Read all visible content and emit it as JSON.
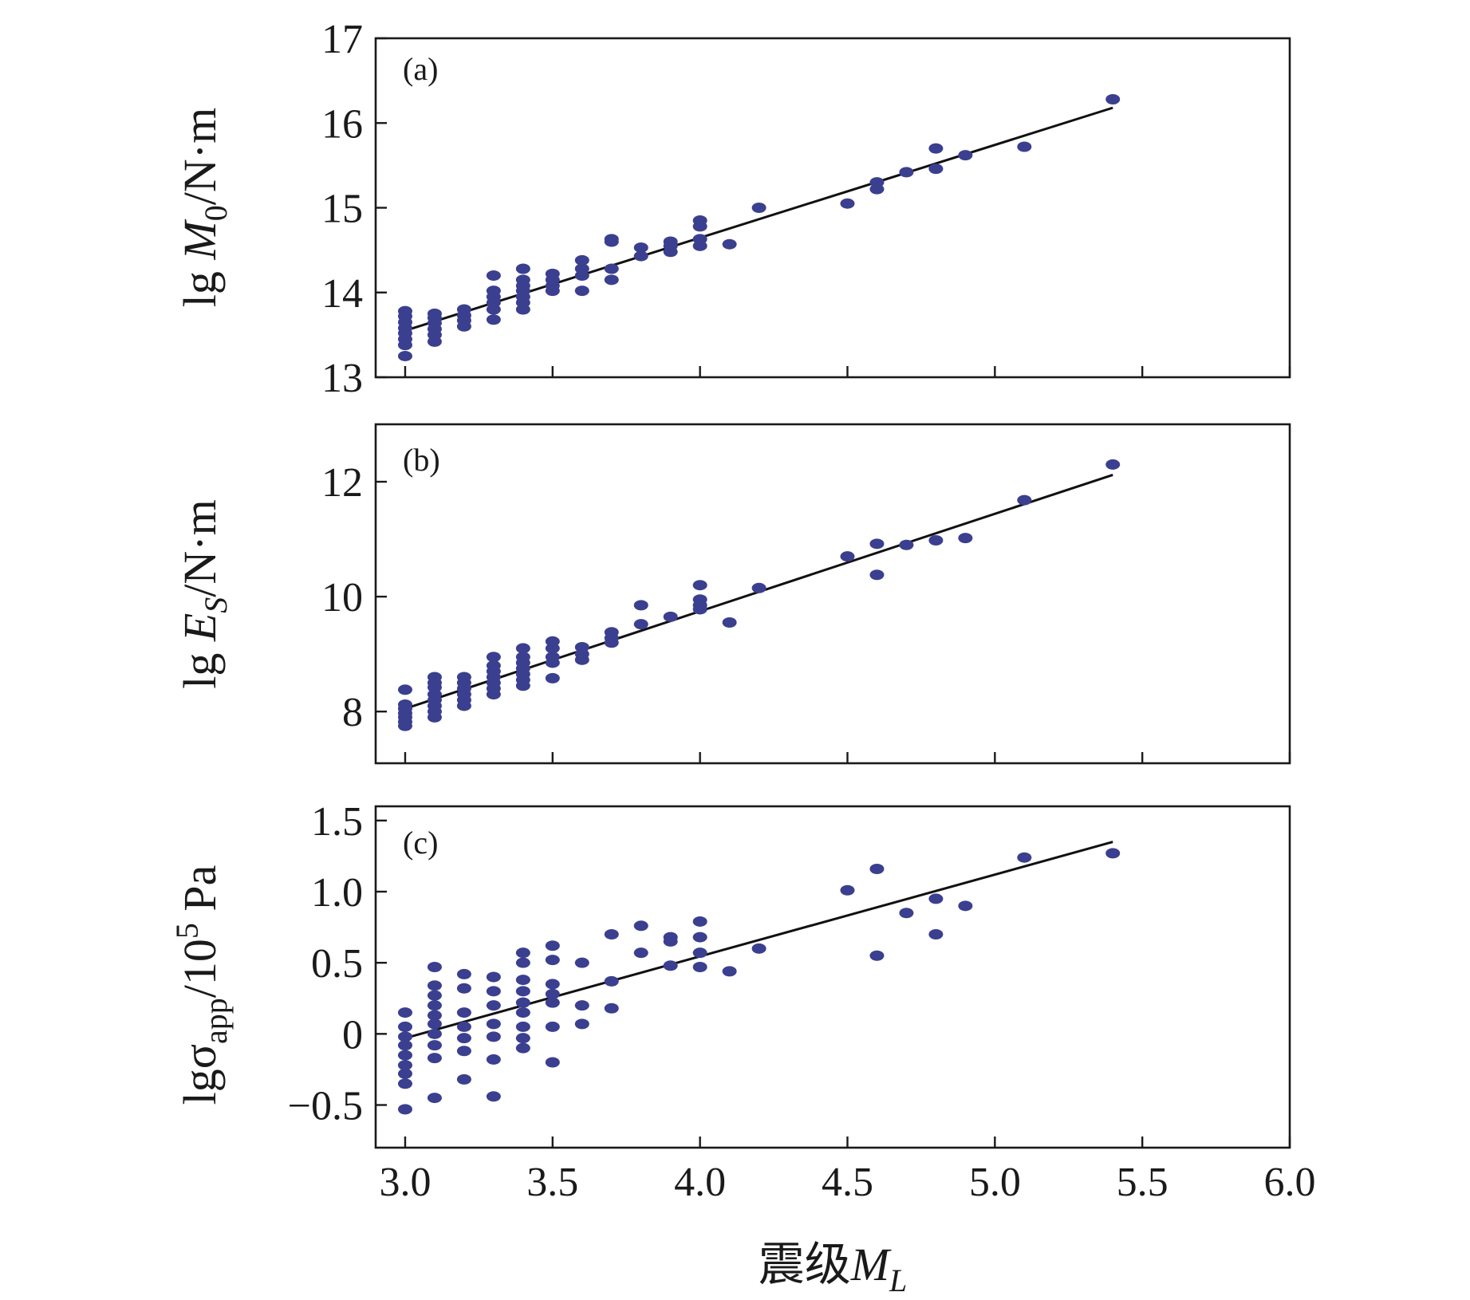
{
  "chart_data": [
    {
      "type": "scatter",
      "panel_label": "(a)",
      "ylabel": {
        "prefix": "lg ",
        "symbol": "M",
        "subscript": "0",
        "suffix": "/N·m"
      },
      "xlim": [
        2.9,
        6.0
      ],
      "ylim": [
        13,
        17
      ],
      "yticks": [
        13,
        14,
        15,
        16,
        17
      ],
      "ytick_labels": [
        "13",
        "14",
        "15",
        "16",
        "17"
      ],
      "fit_line": {
        "x": [
          3.0,
          5.4
        ],
        "y": [
          13.55,
          16.18
        ]
      },
      "points": [
        [
          3.0,
          13.25
        ],
        [
          3.0,
          13.38
        ],
        [
          3.0,
          13.45
        ],
        [
          3.0,
          13.52
        ],
        [
          3.0,
          13.58
        ],
        [
          3.0,
          13.65
        ],
        [
          3.0,
          13.72
        ],
        [
          3.0,
          13.78
        ],
        [
          3.1,
          13.42
        ],
        [
          3.1,
          13.5
        ],
        [
          3.1,
          13.57
        ],
        [
          3.1,
          13.64
        ],
        [
          3.1,
          13.7
        ],
        [
          3.1,
          13.75
        ],
        [
          3.2,
          13.6
        ],
        [
          3.2,
          13.67
        ],
        [
          3.2,
          13.73
        ],
        [
          3.2,
          13.8
        ],
        [
          3.3,
          13.68
        ],
        [
          3.3,
          13.8
        ],
        [
          3.3,
          13.88
        ],
        [
          3.3,
          13.95
        ],
        [
          3.3,
          14.02
        ],
        [
          3.3,
          14.2
        ],
        [
          3.4,
          13.8
        ],
        [
          3.4,
          13.88
        ],
        [
          3.4,
          13.95
        ],
        [
          3.4,
          14.02
        ],
        [
          3.4,
          14.08
        ],
        [
          3.4,
          14.15
        ],
        [
          3.4,
          14.28
        ],
        [
          3.5,
          14.02
        ],
        [
          3.5,
          14.08
        ],
        [
          3.5,
          14.15
        ],
        [
          3.5,
          14.22
        ],
        [
          3.6,
          14.02
        ],
        [
          3.6,
          14.2
        ],
        [
          3.6,
          14.28
        ],
        [
          3.6,
          14.38
        ],
        [
          3.7,
          14.15
        ],
        [
          3.7,
          14.28
        ],
        [
          3.7,
          14.6
        ],
        [
          3.7,
          14.63
        ],
        [
          3.8,
          14.43
        ],
        [
          3.8,
          14.53
        ],
        [
          3.9,
          14.48
        ],
        [
          3.9,
          14.55
        ],
        [
          3.9,
          14.6
        ],
        [
          4.0,
          14.55
        ],
        [
          4.0,
          14.63
        ],
        [
          4.0,
          14.78
        ],
        [
          4.0,
          14.85
        ],
        [
          4.1,
          14.57
        ],
        [
          4.2,
          15.0
        ],
        [
          4.5,
          15.05
        ],
        [
          4.6,
          15.22
        ],
        [
          4.6,
          15.3
        ],
        [
          4.7,
          15.42
        ],
        [
          4.8,
          15.46
        ],
        [
          4.8,
          15.7
        ],
        [
          4.9,
          15.62
        ],
        [
          5.1,
          15.72
        ],
        [
          5.4,
          16.28
        ]
      ]
    },
    {
      "type": "scatter",
      "panel_label": "(b)",
      "ylabel": {
        "prefix": "lg ",
        "symbol": "E",
        "subscript": "S",
        "suffix": "/N·m"
      },
      "xlim": [
        2.9,
        6.0
      ],
      "ylim": [
        7.1,
        13.0
      ],
      "yticks": [
        8,
        10,
        12
      ],
      "ytick_labels": [
        "8",
        "10",
        "12"
      ],
      "fit_line": {
        "x": [
          3.0,
          5.4
        ],
        "y": [
          8.05,
          12.12
        ]
      },
      "points": [
        [
          3.0,
          7.75
        ],
        [
          3.0,
          7.82
        ],
        [
          3.0,
          7.9
        ],
        [
          3.0,
          7.97
        ],
        [
          3.0,
          8.05
        ],
        [
          3.0,
          8.12
        ],
        [
          3.0,
          8.38
        ],
        [
          3.1,
          7.9
        ],
        [
          3.1,
          8.0
        ],
        [
          3.1,
          8.1
        ],
        [
          3.1,
          8.2
        ],
        [
          3.1,
          8.3
        ],
        [
          3.1,
          8.42
        ],
        [
          3.1,
          8.5
        ],
        [
          3.1,
          8.6
        ],
        [
          3.2,
          8.1
        ],
        [
          3.2,
          8.2
        ],
        [
          3.2,
          8.3
        ],
        [
          3.2,
          8.4
        ],
        [
          3.2,
          8.5
        ],
        [
          3.2,
          8.6
        ],
        [
          3.3,
          8.3
        ],
        [
          3.3,
          8.4
        ],
        [
          3.3,
          8.5
        ],
        [
          3.3,
          8.6
        ],
        [
          3.3,
          8.7
        ],
        [
          3.3,
          8.8
        ],
        [
          3.3,
          8.95
        ],
        [
          3.4,
          8.45
        ],
        [
          3.4,
          8.55
        ],
        [
          3.4,
          8.65
        ],
        [
          3.4,
          8.75
        ],
        [
          3.4,
          8.85
        ],
        [
          3.4,
          8.95
        ],
        [
          3.4,
          9.1
        ],
        [
          3.5,
          8.58
        ],
        [
          3.5,
          8.85
        ],
        [
          3.5,
          8.95
        ],
        [
          3.5,
          9.1
        ],
        [
          3.5,
          9.22
        ],
        [
          3.6,
          8.9
        ],
        [
          3.6,
          9.0
        ],
        [
          3.6,
          9.12
        ],
        [
          3.7,
          9.2
        ],
        [
          3.7,
          9.28
        ],
        [
          3.7,
          9.38
        ],
        [
          3.8,
          9.52
        ],
        [
          3.8,
          9.85
        ],
        [
          3.9,
          9.65
        ],
        [
          4.0,
          9.78
        ],
        [
          4.0,
          9.85
        ],
        [
          4.0,
          9.95
        ],
        [
          4.0,
          10.2
        ],
        [
          4.1,
          9.55
        ],
        [
          4.2,
          10.15
        ],
        [
          4.5,
          10.7
        ],
        [
          4.6,
          10.38
        ],
        [
          4.6,
          10.92
        ],
        [
          4.7,
          10.9
        ],
        [
          4.8,
          10.98
        ],
        [
          4.9,
          11.02
        ],
        [
          5.1,
          11.68
        ],
        [
          5.4,
          12.3
        ]
      ]
    },
    {
      "type": "scatter",
      "panel_label": "(c)",
      "ylabel": {
        "prefix": "lgσ",
        "subscript": "app",
        "suffix": "/10",
        "superscript": "5",
        "unit": " Pa"
      },
      "xlim": [
        2.9,
        6.0
      ],
      "ylim": [
        -0.8,
        1.6
      ],
      "yticks": [
        -0.5,
        0,
        0.5,
        1.0,
        1.5
      ],
      "ytick_labels": [
        "−0.5",
        "0",
        "0.5",
        "1.0",
        "1.5"
      ],
      "fit_line": {
        "x": [
          3.0,
          5.4
        ],
        "y": [
          -0.03,
          1.35
        ]
      },
      "points": [
        [
          3.0,
          -0.53
        ],
        [
          3.0,
          -0.35
        ],
        [
          3.0,
          -0.28
        ],
        [
          3.0,
          -0.22
        ],
        [
          3.0,
          -0.15
        ],
        [
          3.0,
          -0.08
        ],
        [
          3.0,
          -0.02
        ],
        [
          3.0,
          0.05
        ],
        [
          3.0,
          0.15
        ],
        [
          3.1,
          -0.45
        ],
        [
          3.1,
          -0.17
        ],
        [
          3.1,
          -0.08
        ],
        [
          3.1,
          0.0
        ],
        [
          3.1,
          0.07
        ],
        [
          3.1,
          0.13
        ],
        [
          3.1,
          0.2
        ],
        [
          3.1,
          0.27
        ],
        [
          3.1,
          0.34
        ],
        [
          3.1,
          0.47
        ],
        [
          3.2,
          -0.32
        ],
        [
          3.2,
          -0.12
        ],
        [
          3.2,
          -0.03
        ],
        [
          3.2,
          0.05
        ],
        [
          3.2,
          0.15
        ],
        [
          3.2,
          0.32
        ],
        [
          3.2,
          0.42
        ],
        [
          3.3,
          -0.44
        ],
        [
          3.3,
          -0.18
        ],
        [
          3.3,
          -0.02
        ],
        [
          3.3,
          0.07
        ],
        [
          3.3,
          0.2
        ],
        [
          3.3,
          0.3
        ],
        [
          3.3,
          0.4
        ],
        [
          3.4,
          -0.1
        ],
        [
          3.4,
          -0.03
        ],
        [
          3.4,
          0.05
        ],
        [
          3.4,
          0.15
        ],
        [
          3.4,
          0.22
        ],
        [
          3.4,
          0.3
        ],
        [
          3.4,
          0.38
        ],
        [
          3.4,
          0.5
        ],
        [
          3.4,
          0.57
        ],
        [
          3.5,
          -0.2
        ],
        [
          3.5,
          0.05
        ],
        [
          3.5,
          0.22
        ],
        [
          3.5,
          0.28
        ],
        [
          3.5,
          0.35
        ],
        [
          3.5,
          0.52
        ],
        [
          3.5,
          0.62
        ],
        [
          3.6,
          0.07
        ],
        [
          3.6,
          0.2
        ],
        [
          3.6,
          0.5
        ],
        [
          3.7,
          0.18
        ],
        [
          3.7,
          0.37
        ],
        [
          3.7,
          0.7
        ],
        [
          3.8,
          0.57
        ],
        [
          3.8,
          0.76
        ],
        [
          3.9,
          0.48
        ],
        [
          3.9,
          0.65
        ],
        [
          3.9,
          0.68
        ],
        [
          4.0,
          0.47
        ],
        [
          4.0,
          0.57
        ],
        [
          4.0,
          0.68
        ],
        [
          4.0,
          0.79
        ],
        [
          4.1,
          0.44
        ],
        [
          4.2,
          0.6
        ],
        [
          4.5,
          1.01
        ],
        [
          4.6,
          0.55
        ],
        [
          4.6,
          1.16
        ],
        [
          4.7,
          0.85
        ],
        [
          4.8,
          0.7
        ],
        [
          4.8,
          0.95
        ],
        [
          4.9,
          0.9
        ],
        [
          5.1,
          1.24
        ],
        [
          5.4,
          1.27
        ]
      ]
    }
  ],
  "xaxis": {
    "ticks": [
      3.0,
      3.5,
      4.0,
      4.5,
      5.0,
      5.5,
      6.0
    ],
    "tick_labels": [
      "3.0",
      "3.5",
      "4.0",
      "4.5",
      "5.0",
      "5.5",
      "6.0"
    ],
    "title": {
      "text": "震级",
      "symbol": "M",
      "subscript": "L"
    }
  },
  "colors": {
    "point": "#3a3f8f",
    "line": "#111111",
    "frame": "#1a1a1a"
  }
}
